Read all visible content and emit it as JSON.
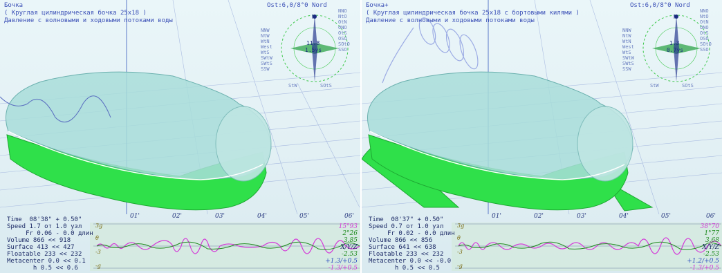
{
  "colors": {
    "hull_green": "#2fe04a",
    "hull_cyan": "#9fd7d3",
    "grid_blue": "#5a78c8",
    "text_blue": "#3a4fb6",
    "magenta": "#d43ad8",
    "green_val": "#1f8a1f",
    "blue_val": "#3050c0"
  },
  "panels": [
    {
      "title": "Бочка",
      "subtitle": "( Круглая цилиндрическая бочка 25x18 )",
      "description": "Давление с волновыми и ходовыми потоками воды",
      "ost": "Ost:6,0/8°0 Nord",
      "compass": {
        "labels_left": [
          "NNW",
          "NtW",
          "WtN",
          "West",
          "WtS",
          "SWtW",
          "SWtS",
          "SSW"
        ],
        "labels_right": [
          "NNO",
          "NtO",
          "OtN",
          "ONO",
          "OtS",
          "OSO",
          "SOtO",
          "SSO"
        ],
        "top": "N",
        "bottom_left": "StW",
        "bottom_right": "SOtS",
        "center_top": "11.8",
        "center_bottom": "1.5ys"
      },
      "time_ticks": [
        "01'",
        "02'",
        "03'",
        "04'",
        "05'",
        "06'"
      ],
      "axis_mini": [
        "3g",
        "θ",
        "-3",
        "-g"
      ],
      "stats": {
        "time": "Time  08'38\" + 0.50\"",
        "speed": "Speed 1.7 от 1.0 узл",
        "fr": "     Fr 0.06 - 0.0 длин",
        "volume": "Volume 866 << 918",
        "surface": "Surface 413 << 427",
        "floatable": "Floatable 233 << 232",
        "metacenter": "Metacenter 0.0 << 0.1",
        "h": "       h 0.5 << 0.6"
      },
      "right_values": {
        "v1": "15°93",
        "v2": "2°26",
        "v3": "3.85",
        "v4": "X/Y/Z",
        "v5": "-2.53",
        "v6": "+1.3/+0.5",
        "v7": "-1.3/+0.5"
      }
    },
    {
      "title": "Бочка+",
      "subtitle": "( Круглая цилиндрическая бочка 25x18 с бортовыми килями )",
      "description": "Давление с волновыми и ходовыми потоками воды",
      "ost": "Ost:6,0/8°0 Nord",
      "compass": {
        "labels_left": [
          "NNW",
          "NtW",
          "WtN",
          "West",
          "WtS",
          "SWtW",
          "SWtS",
          "SSW"
        ],
        "labels_right": [
          "NNO",
          "NtO",
          "OtN",
          "ONO",
          "OtS",
          "OSO",
          "SOtO",
          "SSO"
        ],
        "top": "N",
        "bottom_left": "StW",
        "bottom_right": "SOtS",
        "center_top": "1.3",
        "center_bottom": "0.7ys"
      },
      "time_ticks": [
        "01'",
        "02'",
        "03'",
        "04'",
        "05'",
        "06'"
      ],
      "axis_mini": [
        "3g",
        "θ",
        "-3",
        "-g"
      ],
      "stats": {
        "time": "Time  08'37\" + 0.50\"",
        "speed": "Speed 0.7 от 1.0 узл",
        "fr": "     Fr 0.02 - 0.0 длин",
        "volume": "Volume 866 << 856",
        "surface": "Surface 641 << 638",
        "floatable": "Floatable 233 << 232",
        "metacenter": "Metacenter 0.0 << -0.0",
        "h": "       h 0.5 << 0.5"
      },
      "right_values": {
        "v1": "38°70",
        "v2": "1°77",
        "v3": "3.68",
        "v4": "X/Y/Z",
        "v5": "-2.53",
        "v6": "+1.2/+0.5",
        "v7": "-1.3/+0.5"
      }
    }
  ]
}
